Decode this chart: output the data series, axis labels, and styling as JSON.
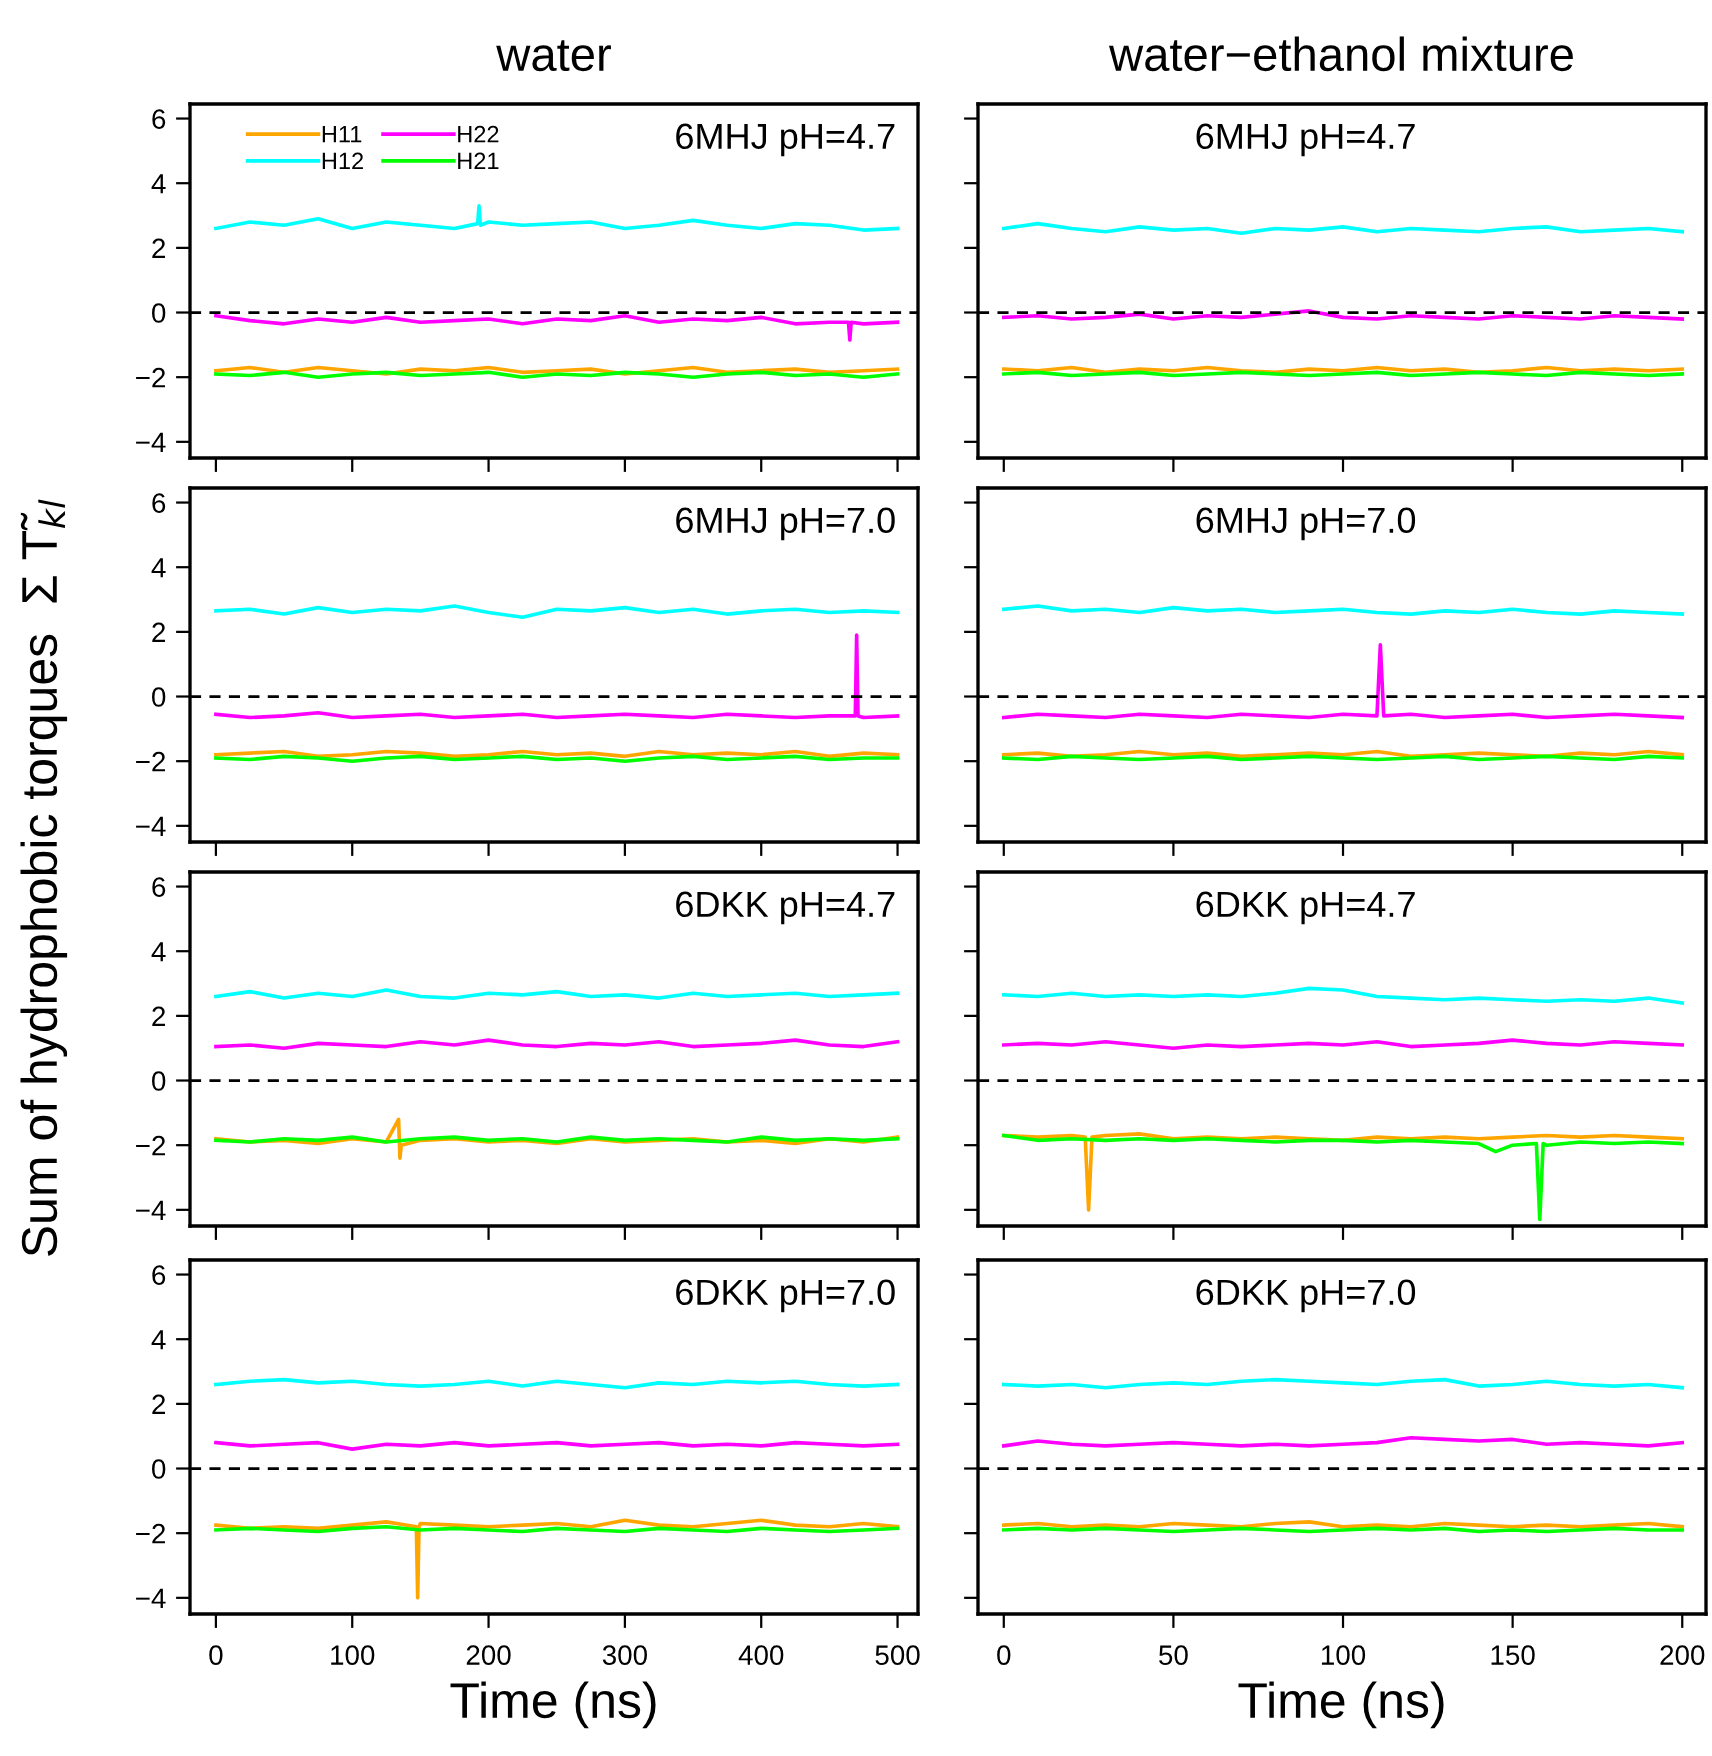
{
  "chart_data": [
    {
      "type": "line",
      "title": "water",
      "ylabel": "Sum of hydrophobic torques  Σ T̃$_{kl}$",
      "annotations": [
        "6MHJ pH=4.7"
      ],
      "legend": "top left",
      "tick_labels": "y",
      "grid": false,
      "line_style": "solid",
      "marker": "none",
      "xlim": [
        -19,
        515
      ],
      "ylim": [
        -4.5,
        6.45
      ],
      "xticks": [
        0,
        100,
        200,
        300,
        400,
        500
      ],
      "yticks": [
        -4,
        -2,
        0,
        2,
        4,
        6
      ],
      "ref_lines": [
        {
          "axis": "y",
          "value": 0,
          "color": "#000000",
          "line_style": "dashed"
        }
      ],
      "x": [
        0,
        25,
        50,
        75,
        100,
        125,
        150,
        175,
        200,
        225,
        250,
        275,
        300,
        325,
        350,
        375,
        400,
        425,
        450,
        475,
        500
      ],
      "series": [
        {
          "name": "H11",
          "color": "#ffa500",
          "values": [
            -1.8,
            -1.7,
            -1.85,
            -1.7,
            -1.8,
            -1.9,
            -1.75,
            -1.8,
            -1.7,
            -1.85,
            -1.8,
            -1.75,
            -1.9,
            -1.8,
            -1.7,
            -1.85,
            -1.8,
            -1.75,
            -1.85,
            -1.8,
            -1.75
          ]
        },
        {
          "name": "H12",
          "color": "#00ffff",
          "x": [
            0,
            25,
            50,
            75,
            100,
            125,
            150,
            175,
            192,
            193,
            194,
            200,
            225,
            250,
            275,
            300,
            325,
            350,
            375,
            400,
            425,
            450,
            475,
            500
          ],
          "values": [
            2.6,
            2.8,
            2.7,
            2.9,
            2.6,
            2.8,
            2.7,
            2.6,
            2.75,
            3.3,
            2.7,
            2.8,
            2.7,
            2.75,
            2.8,
            2.6,
            2.7,
            2.85,
            2.7,
            2.6,
            2.75,
            2.7,
            2.55,
            2.6
          ]
        },
        {
          "name": "H22",
          "color": "#ff00ff",
          "x": [
            0,
            25,
            50,
            75,
            100,
            125,
            150,
            175,
            200,
            225,
            250,
            275,
            300,
            325,
            350,
            375,
            400,
            425,
            450,
            464,
            465,
            466,
            475,
            500
          ],
          "values": [
            -0.1,
            -0.25,
            -0.35,
            -0.2,
            -0.3,
            -0.15,
            -0.3,
            -0.25,
            -0.2,
            -0.35,
            -0.2,
            -0.25,
            -0.1,
            -0.3,
            -0.2,
            -0.25,
            -0.15,
            -0.35,
            -0.3,
            -0.3,
            -0.85,
            -0.3,
            -0.35,
            -0.3
          ]
        },
        {
          "name": "H21",
          "color": "#00ff00",
          "values": [
            -1.9,
            -1.95,
            -1.85,
            -2.0,
            -1.9,
            -1.85,
            -1.95,
            -1.9,
            -1.85,
            -2.0,
            -1.9,
            -1.95,
            -1.85,
            -1.9,
            -2.0,
            -1.9,
            -1.85,
            -1.95,
            -1.9,
            -2.0,
            -1.9
          ]
        }
      ]
    },
    {
      "type": "line",
      "title": "water−ethanol mixture",
      "annotations": [
        "6MHJ pH=4.7"
      ],
      "tick_labels": false,
      "grid": false,
      "line_style": "solid",
      "marker": "none",
      "xlim": [
        -7.6,
        207
      ],
      "ylim": [
        -4.5,
        6.45
      ],
      "xticks": [
        0,
        50,
        100,
        150,
        200
      ],
      "yticks": [
        -4,
        -2,
        0,
        2,
        4,
        6
      ],
      "ref_lines": [
        {
          "axis": "y",
          "value": 0,
          "color": "#000000",
          "line_style": "dashed"
        }
      ],
      "x": [
        0,
        10,
        20,
        30,
        40,
        50,
        60,
        70,
        80,
        90,
        100,
        110,
        120,
        130,
        140,
        150,
        160,
        170,
        180,
        190,
        200
      ],
      "series": [
        {
          "color": "#ffa500",
          "values": [
            -1.75,
            -1.8,
            -1.7,
            -1.85,
            -1.75,
            -1.8,
            -1.7,
            -1.8,
            -1.85,
            -1.75,
            -1.8,
            -1.7,
            -1.8,
            -1.75,
            -1.85,
            -1.8,
            -1.7,
            -1.8,
            -1.75,
            -1.8,
            -1.75
          ]
        },
        {
          "color": "#00ffff",
          "values": [
            2.6,
            2.75,
            2.6,
            2.5,
            2.65,
            2.55,
            2.6,
            2.45,
            2.6,
            2.55,
            2.65,
            2.5,
            2.6,
            2.55,
            2.5,
            2.6,
            2.65,
            2.5,
            2.55,
            2.6,
            2.5
          ]
        },
        {
          "color": "#ff00ff",
          "values": [
            -0.15,
            -0.1,
            -0.2,
            -0.15,
            -0.05,
            -0.2,
            -0.1,
            -0.15,
            -0.05,
            0.05,
            -0.15,
            -0.2,
            -0.1,
            -0.15,
            -0.2,
            -0.1,
            -0.15,
            -0.2,
            -0.1,
            -0.15,
            -0.2
          ]
        },
        {
          "color": "#00ff00",
          "values": [
            -1.9,
            -1.85,
            -1.95,
            -1.9,
            -1.85,
            -1.95,
            -1.9,
            -1.85,
            -1.9,
            -1.95,
            -1.9,
            -1.85,
            -1.95,
            -1.9,
            -1.85,
            -1.9,
            -1.95,
            -1.85,
            -1.9,
            -1.95,
            -1.9
          ]
        }
      ]
    },
    {
      "type": "line",
      "annotations": [
        "6MHJ pH=7.0"
      ],
      "tick_labels": "y",
      "grid": false,
      "line_style": "solid",
      "marker": "none",
      "xlim": [
        -19,
        515
      ],
      "ylim": [
        -4.5,
        6.45
      ],
      "xticks": [
        0,
        100,
        200,
        300,
        400,
        500
      ],
      "yticks": [
        -4,
        -2,
        0,
        2,
        4,
        6
      ],
      "ref_lines": [
        {
          "axis": "y",
          "value": 0,
          "color": "#000000",
          "line_style": "dashed"
        }
      ],
      "x": [
        0,
        25,
        50,
        75,
        100,
        125,
        150,
        175,
        200,
        225,
        250,
        275,
        300,
        325,
        350,
        375,
        400,
        425,
        450,
        475,
        500
      ],
      "series": [
        {
          "color": "#ffa500",
          "values": [
            -1.8,
            -1.75,
            -1.7,
            -1.85,
            -1.8,
            -1.7,
            -1.75,
            -1.85,
            -1.8,
            -1.7,
            -1.8,
            -1.75,
            -1.85,
            -1.7,
            -1.8,
            -1.75,
            -1.8,
            -1.7,
            -1.85,
            -1.75,
            -1.8
          ]
        },
        {
          "color": "#00ffff",
          "values": [
            2.65,
            2.7,
            2.55,
            2.75,
            2.6,
            2.7,
            2.65,
            2.8,
            2.6,
            2.45,
            2.7,
            2.65,
            2.75,
            2.6,
            2.7,
            2.55,
            2.65,
            2.7,
            2.6,
            2.65,
            2.6
          ]
        },
        {
          "color": "#ff00ff",
          "x": [
            0,
            25,
            50,
            75,
            100,
            125,
            150,
            175,
            200,
            225,
            250,
            275,
            300,
            325,
            350,
            375,
            400,
            425,
            450,
            469,
            470,
            471,
            475,
            500
          ],
          "values": [
            -0.55,
            -0.65,
            -0.6,
            -0.5,
            -0.65,
            -0.6,
            -0.55,
            -0.65,
            -0.6,
            -0.55,
            -0.65,
            -0.6,
            -0.55,
            -0.6,
            -0.65,
            -0.55,
            -0.6,
            -0.65,
            -0.6,
            -0.6,
            1.9,
            -0.6,
            -0.65,
            -0.6
          ]
        },
        {
          "color": "#00ff00",
          "values": [
            -1.9,
            -1.95,
            -1.85,
            -1.9,
            -2.0,
            -1.9,
            -1.85,
            -1.95,
            -1.9,
            -1.85,
            -1.95,
            -1.9,
            -2.0,
            -1.9,
            -1.85,
            -1.95,
            -1.9,
            -1.85,
            -1.95,
            -1.9,
            -1.9
          ]
        }
      ]
    },
    {
      "type": "line",
      "annotations": [
        "6MHJ pH=7.0"
      ],
      "tick_labels": false,
      "grid": false,
      "line_style": "solid",
      "marker": "none",
      "xlim": [
        -7.6,
        207
      ],
      "ylim": [
        -4.5,
        6.45
      ],
      "xticks": [
        0,
        50,
        100,
        150,
        200
      ],
      "yticks": [
        -4,
        -2,
        0,
        2,
        4,
        6
      ],
      "ref_lines": [
        {
          "axis": "y",
          "value": 0,
          "color": "#000000",
          "line_style": "dashed"
        }
      ],
      "x": [
        0,
        10,
        20,
        30,
        40,
        50,
        60,
        70,
        80,
        90,
        100,
        110,
        120,
        130,
        140,
        150,
        160,
        170,
        180,
        190,
        200
      ],
      "series": [
        {
          "color": "#ffa500",
          "values": [
            -1.8,
            -1.75,
            -1.85,
            -1.8,
            -1.7,
            -1.8,
            -1.75,
            -1.85,
            -1.8,
            -1.75,
            -1.8,
            -1.7,
            -1.85,
            -1.8,
            -1.75,
            -1.8,
            -1.85,
            -1.75,
            -1.8,
            -1.7,
            -1.8
          ]
        },
        {
          "color": "#00ffff",
          "values": [
            2.7,
            2.8,
            2.65,
            2.7,
            2.6,
            2.75,
            2.65,
            2.7,
            2.6,
            2.65,
            2.7,
            2.6,
            2.55,
            2.65,
            2.6,
            2.7,
            2.6,
            2.55,
            2.65,
            2.6,
            2.55
          ]
        },
        {
          "color": "#ff00ff",
          "x": [
            0,
            10,
            20,
            30,
            40,
            50,
            60,
            70,
            80,
            90,
            100,
            110,
            111,
            112,
            120,
            130,
            140,
            150,
            160,
            170,
            180,
            190,
            200
          ],
          "values": [
            -0.65,
            -0.55,
            -0.6,
            -0.65,
            -0.55,
            -0.6,
            -0.65,
            -0.55,
            -0.6,
            -0.65,
            -0.55,
            -0.6,
            1.6,
            -0.6,
            -0.55,
            -0.65,
            -0.6,
            -0.55,
            -0.65,
            -0.6,
            -0.55,
            -0.6,
            -0.65
          ]
        },
        {
          "color": "#00ff00",
          "values": [
            -1.9,
            -1.95,
            -1.85,
            -1.9,
            -1.95,
            -1.9,
            -1.85,
            -1.95,
            -1.9,
            -1.85,
            -1.9,
            -1.95,
            -1.9,
            -1.85,
            -1.95,
            -1.9,
            -1.85,
            -1.9,
            -1.95,
            -1.85,
            -1.9
          ]
        }
      ]
    },
    {
      "type": "line",
      "annotations": [
        "6DKK pH=4.7"
      ],
      "tick_labels": "y",
      "grid": false,
      "line_style": "solid",
      "marker": "none",
      "xlim": [
        -19,
        515
      ],
      "ylim": [
        -4.5,
        6.45
      ],
      "xticks": [
        0,
        100,
        200,
        300,
        400,
        500
      ],
      "yticks": [
        -4,
        -2,
        0,
        2,
        4,
        6
      ],
      "ref_lines": [
        {
          "axis": "y",
          "value": 0,
          "color": "#000000",
          "line_style": "dashed"
        }
      ],
      "x": [
        0,
        25,
        50,
        75,
        100,
        125,
        150,
        175,
        200,
        225,
        250,
        275,
        300,
        325,
        350,
        375,
        400,
        425,
        450,
        475,
        500
      ],
      "series": [
        {
          "color": "#ffa500",
          "x": [
            0,
            25,
            50,
            75,
            100,
            125,
            134,
            135,
            136,
            150,
            175,
            200,
            225,
            250,
            275,
            300,
            325,
            350,
            375,
            400,
            425,
            450,
            475,
            500
          ],
          "values": [
            -1.8,
            -1.9,
            -1.85,
            -1.95,
            -1.8,
            -1.9,
            -1.2,
            -2.4,
            -2.0,
            -1.85,
            -1.8,
            -1.9,
            -1.85,
            -1.95,
            -1.8,
            -1.9,
            -1.85,
            -1.8,
            -1.9,
            -1.85,
            -1.95,
            -1.8,
            -1.9,
            -1.75
          ]
        },
        {
          "color": "#00ffff",
          "values": [
            2.6,
            2.75,
            2.55,
            2.7,
            2.6,
            2.8,
            2.6,
            2.55,
            2.7,
            2.65,
            2.75,
            2.6,
            2.65,
            2.55,
            2.7,
            2.6,
            2.65,
            2.7,
            2.6,
            2.65,
            2.7
          ]
        },
        {
          "color": "#ff00ff",
          "values": [
            1.05,
            1.1,
            1.0,
            1.15,
            1.1,
            1.05,
            1.2,
            1.1,
            1.25,
            1.1,
            1.05,
            1.15,
            1.1,
            1.2,
            1.05,
            1.1,
            1.15,
            1.25,
            1.1,
            1.05,
            1.2
          ]
        },
        {
          "color": "#00ff00",
          "values": [
            -1.85,
            -1.9,
            -1.8,
            -1.85,
            -1.75,
            -1.9,
            -1.8,
            -1.75,
            -1.85,
            -1.8,
            -1.9,
            -1.75,
            -1.85,
            -1.8,
            -1.85,
            -1.9,
            -1.75,
            -1.85,
            -1.8,
            -1.85,
            -1.8
          ]
        }
      ]
    },
    {
      "type": "line",
      "annotations": [
        "6DKK pH=4.7"
      ],
      "tick_labels": false,
      "grid": false,
      "line_style": "solid",
      "marker": "none",
      "xlim": [
        -7.6,
        207
      ],
      "ylim": [
        -4.5,
        6.45
      ],
      "xticks": [
        0,
        50,
        100,
        150,
        200
      ],
      "yticks": [
        -4,
        -2,
        0,
        2,
        4,
        6
      ],
      "ref_lines": [
        {
          "axis": "y",
          "value": 0,
          "color": "#000000",
          "line_style": "dashed"
        }
      ],
      "x": [
        0,
        10,
        20,
        30,
        40,
        50,
        60,
        70,
        80,
        90,
        100,
        110,
        120,
        130,
        140,
        150,
        160,
        170,
        180,
        190,
        200
      ],
      "series": [
        {
          "color": "#ffa500",
          "x": [
            0,
            10,
            20,
            24,
            25,
            26,
            30,
            40,
            50,
            60,
            70,
            80,
            90,
            100,
            110,
            120,
            130,
            140,
            150,
            160,
            170,
            180,
            190,
            200
          ],
          "values": [
            -1.7,
            -1.75,
            -1.7,
            -1.75,
            -4.0,
            -1.75,
            -1.7,
            -1.65,
            -1.8,
            -1.75,
            -1.8,
            -1.75,
            -1.8,
            -1.85,
            -1.75,
            -1.8,
            -1.75,
            -1.8,
            -1.75,
            -1.7,
            -1.75,
            -1.7,
            -1.75,
            -1.8
          ]
        },
        {
          "color": "#00ffff",
          "values": [
            2.65,
            2.6,
            2.7,
            2.6,
            2.65,
            2.6,
            2.65,
            2.6,
            2.7,
            2.85,
            2.8,
            2.6,
            2.55,
            2.5,
            2.55,
            2.5,
            2.45,
            2.5,
            2.45,
            2.55,
            2.4
          ]
        },
        {
          "color": "#ff00ff",
          "values": [
            1.1,
            1.15,
            1.1,
            1.2,
            1.1,
            1.0,
            1.1,
            1.05,
            1.1,
            1.15,
            1.1,
            1.2,
            1.05,
            1.1,
            1.15,
            1.25,
            1.15,
            1.1,
            1.2,
            1.15,
            1.1
          ]
        },
        {
          "color": "#00ff00",
          "x": [
            0,
            10,
            20,
            30,
            40,
            50,
            60,
            70,
            80,
            90,
            100,
            110,
            120,
            130,
            140,
            145,
            150,
            157,
            158,
            159,
            160,
            170,
            180,
            190,
            200
          ],
          "values": [
            -1.7,
            -1.85,
            -1.8,
            -1.85,
            -1.8,
            -1.85,
            -1.8,
            -1.85,
            -1.9,
            -1.85,
            -1.85,
            -1.9,
            -1.85,
            -1.9,
            -1.95,
            -2.2,
            -2.0,
            -1.95,
            -4.3,
            -1.95,
            -2.0,
            -1.9,
            -1.95,
            -1.9,
            -1.95
          ]
        }
      ]
    },
    {
      "type": "line",
      "xlabel": "Time (ns)",
      "annotations": [
        "6DKK pH=7.0"
      ],
      "grid": false,
      "line_style": "solid",
      "marker": "none",
      "xlim": [
        -19,
        515
      ],
      "ylim": [
        -4.5,
        6.45
      ],
      "xticks": [
        0,
        100,
        200,
        300,
        400,
        500
      ],
      "yticks": [
        -4,
        -2,
        0,
        2,
        4,
        6
      ],
      "ref_lines": [
        {
          "axis": "y",
          "value": 0,
          "color": "#000000",
          "line_style": "dashed"
        }
      ],
      "x": [
        0,
        25,
        50,
        75,
        100,
        125,
        150,
        175,
        200,
        225,
        250,
        275,
        300,
        325,
        350,
        375,
        400,
        425,
        450,
        475,
        500
      ],
      "series": [
        {
          "color": "#ffa500",
          "x": [
            0,
            25,
            50,
            75,
            100,
            125,
            147,
            148,
            149,
            150,
            175,
            200,
            225,
            250,
            275,
            300,
            325,
            350,
            375,
            400,
            425,
            450,
            475,
            500
          ],
          "values": [
            -1.75,
            -1.85,
            -1.8,
            -1.85,
            -1.75,
            -1.65,
            -1.8,
            -4.0,
            -1.8,
            -1.7,
            -1.75,
            -1.8,
            -1.75,
            -1.7,
            -1.8,
            -1.6,
            -1.75,
            -1.8,
            -1.7,
            -1.6,
            -1.75,
            -1.8,
            -1.7,
            -1.8
          ]
        },
        {
          "color": "#00ffff",
          "values": [
            2.6,
            2.7,
            2.75,
            2.65,
            2.7,
            2.6,
            2.55,
            2.6,
            2.7,
            2.55,
            2.7,
            2.6,
            2.5,
            2.65,
            2.6,
            2.7,
            2.65,
            2.7,
            2.6,
            2.55,
            2.6
          ]
        },
        {
          "color": "#ff00ff",
          "values": [
            0.8,
            0.7,
            0.75,
            0.8,
            0.6,
            0.75,
            0.7,
            0.8,
            0.7,
            0.75,
            0.8,
            0.7,
            0.75,
            0.8,
            0.7,
            0.75,
            0.7,
            0.8,
            0.75,
            0.7,
            0.75
          ]
        },
        {
          "color": "#00ff00",
          "values": [
            -1.9,
            -1.85,
            -1.9,
            -1.95,
            -1.85,
            -1.8,
            -1.9,
            -1.85,
            -1.9,
            -1.95,
            -1.85,
            -1.9,
            -1.95,
            -1.85,
            -1.9,
            -1.95,
            -1.85,
            -1.9,
            -1.95,
            -1.9,
            -1.85
          ]
        }
      ]
    },
    {
      "type": "line",
      "xlabel": "Time (ns)",
      "annotations": [
        "6DKK pH=7.0"
      ],
      "tick_labels": "x",
      "grid": false,
      "line_style": "solid",
      "marker": "none",
      "xlim": [
        -7.6,
        207
      ],
      "ylim": [
        -4.5,
        6.45
      ],
      "xticks": [
        0,
        50,
        100,
        150,
        200
      ],
      "yticks": [
        -4,
        -2,
        0,
        2,
        4,
        6
      ],
      "ref_lines": [
        {
          "axis": "y",
          "value": 0,
          "color": "#000000",
          "line_style": "dashed"
        }
      ],
      "x": [
        0,
        10,
        20,
        30,
        40,
        50,
        60,
        70,
        80,
        90,
        100,
        110,
        120,
        130,
        140,
        150,
        160,
        170,
        180,
        190,
        200
      ],
      "series": [
        {
          "color": "#ffa500",
          "values": [
            -1.75,
            -1.7,
            -1.8,
            -1.75,
            -1.8,
            -1.7,
            -1.75,
            -1.8,
            -1.7,
            -1.65,
            -1.8,
            -1.75,
            -1.8,
            -1.7,
            -1.75,
            -1.8,
            -1.75,
            -1.8,
            -1.75,
            -1.7,
            -1.8
          ]
        },
        {
          "color": "#00ffff",
          "values": [
            2.6,
            2.55,
            2.6,
            2.5,
            2.6,
            2.65,
            2.6,
            2.7,
            2.75,
            2.7,
            2.65,
            2.6,
            2.7,
            2.75,
            2.55,
            2.6,
            2.7,
            2.6,
            2.55,
            2.6,
            2.5
          ]
        },
        {
          "color": "#ff00ff",
          "values": [
            0.7,
            0.85,
            0.75,
            0.7,
            0.75,
            0.8,
            0.75,
            0.7,
            0.75,
            0.7,
            0.75,
            0.8,
            0.95,
            0.9,
            0.85,
            0.9,
            0.75,
            0.8,
            0.75,
            0.7,
            0.8
          ]
        },
        {
          "color": "#00ff00",
          "values": [
            -1.9,
            -1.85,
            -1.9,
            -1.85,
            -1.9,
            -1.95,
            -1.9,
            -1.85,
            -1.9,
            -1.95,
            -1.9,
            -1.85,
            -1.9,
            -1.85,
            -1.95,
            -1.9,
            -1.95,
            -1.9,
            -1.85,
            -1.9,
            -1.9
          ]
        }
      ]
    }
  ]
}
